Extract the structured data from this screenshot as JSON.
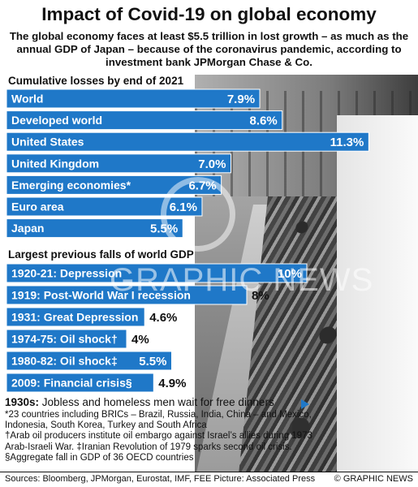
{
  "headline": "Impact of Covid-19 on global economy",
  "standfirst": "The global economy faces at least $5.5 trillion in lost growth – as much as the annual GDP of Japan – because of the coronavirus pandemic, according to investment bank JPMorgan Chase & Co.",
  "colors": {
    "bar": "#1f78c8",
    "text": "#111111"
  },
  "chart_data": [
    {
      "type": "bar",
      "orientation": "horizontal",
      "title": "Cumulative losses by end of 2021",
      "categories": [
        "World",
        "Developed world",
        "United States",
        "United Kingdom",
        "Emerging economies*",
        "Euro area",
        "Japan"
      ],
      "values": [
        7.9,
        8.6,
        11.3,
        7.0,
        6.7,
        6.1,
        5.5
      ],
      "labels": [
        "7.9%",
        "8.6%",
        "11.3%",
        "7.0%",
        "6.7%",
        "6.1%",
        "5.5%"
      ]
    },
    {
      "type": "bar",
      "orientation": "horizontal",
      "title": "Largest previous falls of world GDP",
      "categories": [
        "1920-21: Depression",
        "1919: Post-World War I recession",
        "1931: Great Depression",
        "1974-75: Oil shock†",
        "1980-82: Oil shock‡",
        "2009: Financial crisis§"
      ],
      "values": [
        10,
        8,
        4.6,
        4,
        5.5,
        4.9
      ],
      "labels": [
        "10%",
        "8%",
        "4.6%",
        "4%",
        "5.5%",
        "4.9%"
      ]
    }
  ],
  "watermark": "GRAPHIC NEWS",
  "caption": {
    "lead": "1930s:",
    "text": " Jobless and homeless men wait for free dinners",
    "notes": [
      "*23 countries including BRICs – Brazil, Russia, India, China – and Mexico, Indonesia, South Korea, Turkey and South Africa",
      "†Arab oil producers institute oil embargo against Israel’s allies during 1973 Arab-Israeli War. ‡Iranian Revolution of 1979 sparks second oil crisis. §Aggregate fall in GDP of 36 OECD countries"
    ]
  },
  "footer": {
    "sources": "Sources: Bloomberg, JPMorgan, Eurostat, IMF, FEE  Picture: Associated Press",
    "credit": "© GRAPHIC NEWS"
  }
}
